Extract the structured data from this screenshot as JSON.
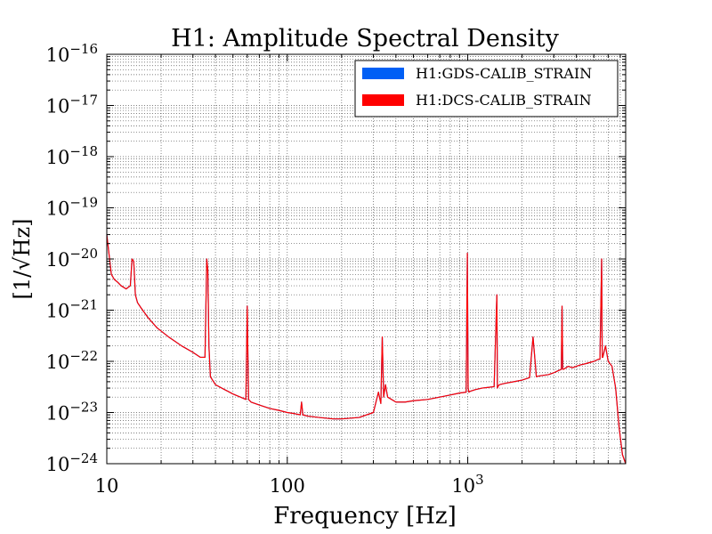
{
  "chart_data": {
    "type": "line",
    "title": "H1: Amplitude Spectral Density",
    "xlabel": "Frequency [Hz]",
    "ylabel": "[1/√Hz]",
    "x_scale": "log",
    "y_scale": "log",
    "xlim": [
      10,
      7500
    ],
    "ylim": [
      1e-24,
      1e-16
    ],
    "grid": true,
    "legend_position": "top-right",
    "x_ticks": [
      {
        "value": 10,
        "label": "10"
      },
      {
        "value": 100,
        "label": "100"
      },
      {
        "value": 1000,
        "label": "10",
        "exponent": "3"
      }
    ],
    "y_ticks": [
      {
        "value": 1e-16,
        "label": "10",
        "exponent": "−16"
      },
      {
        "value": 1e-17,
        "label": "10",
        "exponent": "−17"
      },
      {
        "value": 1e-18,
        "label": "10",
        "exponent": "−18"
      },
      {
        "value": 1e-19,
        "label": "10",
        "exponent": "−19"
      },
      {
        "value": 1e-20,
        "label": "10",
        "exponent": "−20"
      },
      {
        "value": 1e-21,
        "label": "10",
        "exponent": "−21"
      },
      {
        "value": 1e-22,
        "label": "10",
        "exponent": "−22"
      },
      {
        "value": 1e-23,
        "label": "10",
        "exponent": "−23"
      },
      {
        "value": 1e-24,
        "label": "10",
        "exponent": "−24"
      }
    ],
    "series": [
      {
        "name": "H1:GDS-CALIB_STRAIN",
        "color": "#005ff5",
        "x": [
          10,
          10.3,
          10.6,
          11,
          11.5,
          12,
          12.8,
          13.5,
          13.8,
          14.1,
          14.4,
          14.8,
          15.5,
          17,
          19,
          22,
          26,
          30,
          33,
          35,
          35.8,
          36.3,
          36.8,
          37.5,
          40,
          45,
          50,
          55,
          59,
          60,
          61,
          63,
          70,
          80,
          90,
          100,
          110,
          118,
          120,
          122,
          130,
          150,
          180,
          200,
          250,
          300,
          320,
          330,
          336,
          342,
          350,
          360,
          400,
          450,
          500,
          600,
          700,
          800,
          900,
          980,
          995,
          1005,
          1015,
          1030,
          1100,
          1200,
          1300,
          1400,
          1450,
          1460,
          1475,
          1500,
          1600,
          1800,
          2000,
          2200,
          2300,
          2400,
          2500,
          2800,
          3000,
          3300,
          3331,
          3360,
          3400,
          3600,
          3800,
          4000,
          4200,
          4500,
          5000,
          5300,
          5400,
          5520,
          5560,
          5600,
          5800,
          6000,
          6300,
          6600,
          6900,
          7200,
          7500
        ],
        "y": [
          3e-20,
          1.2e-20,
          5e-21,
          4e-21,
          3.5e-21,
          3e-21,
          2.6e-21,
          3e-21,
          1e-20,
          9e-21,
          2e-21,
          1.4e-21,
          1.1e-21,
          7e-22,
          4.5e-22,
          3e-22,
          2e-22,
          1.5e-22,
          1.2e-22,
          1.2e-22,
          1e-20,
          6e-21,
          2e-22,
          5e-23,
          3.5e-23,
          2.8e-23,
          2.3e-23,
          2e-23,
          1.8e-23,
          1.2e-21,
          1.8e-23,
          1.6e-23,
          1.4e-23,
          1.2e-23,
          1.1e-23,
          1e-23,
          9.5e-24,
          9e-24,
          1.6e-23,
          9e-24,
          8.5e-24,
          8e-24,
          7.5e-24,
          7.5e-24,
          8e-24,
          1e-23,
          2.5e-23,
          1.5e-23,
          3e-22,
          2e-23,
          3.5e-23,
          2e-23,
          1.6e-23,
          1.6e-23,
          1.7e-23,
          1.8e-23,
          2e-23,
          2.2e-23,
          2.4e-23,
          2.5e-23,
          1.3e-20,
          3e-23,
          2.5e-23,
          2.6e-23,
          2.8e-23,
          3e-23,
          3.1e-23,
          3.2e-23,
          2e-21,
          3e-23,
          3.3e-23,
          3.5e-23,
          3.7e-23,
          4e-23,
          4.3e-23,
          4.8e-23,
          3e-22,
          5e-23,
          5.2e-23,
          5.5e-23,
          6e-23,
          7e-23,
          1.2e-21,
          7e-23,
          7e-23,
          8e-23,
          7.5e-23,
          8e-23,
          8.5e-23,
          9e-23,
          1e-22,
          1.1e-22,
          1.1e-22,
          1e-20,
          1.2e-22,
          1.2e-22,
          2e-22,
          1e-22,
          8e-23,
          3e-23,
          5e-24,
          1.5e-24,
          1e-24
        ]
      },
      {
        "name": "H1:DCS-CALIB_STRAIN",
        "color": "#ff0000",
        "x": [
          10,
          10.3,
          10.6,
          11,
          11.5,
          12,
          12.8,
          13.5,
          13.8,
          14.1,
          14.4,
          14.8,
          15.5,
          17,
          19,
          22,
          26,
          30,
          33,
          35,
          35.8,
          36.3,
          36.8,
          37.5,
          40,
          45,
          50,
          55,
          59,
          60,
          61,
          63,
          70,
          80,
          90,
          100,
          110,
          118,
          120,
          122,
          130,
          150,
          180,
          200,
          250,
          300,
          320,
          330,
          336,
          342,
          350,
          360,
          400,
          450,
          500,
          600,
          700,
          800,
          900,
          980,
          995,
          1005,
          1015,
          1030,
          1100,
          1200,
          1300,
          1400,
          1450,
          1460,
          1475,
          1500,
          1600,
          1800,
          2000,
          2200,
          2300,
          2400,
          2500,
          2800,
          3000,
          3300,
          3331,
          3360,
          3400,
          3600,
          3800,
          4000,
          4200,
          4500,
          5000,
          5300,
          5400,
          5520,
          5560,
          5600,
          5800,
          6000,
          6300,
          6600,
          6900,
          7200,
          7500
        ],
        "y": [
          3e-20,
          1.2e-20,
          5e-21,
          4e-21,
          3.5e-21,
          3e-21,
          2.6e-21,
          3e-21,
          1e-20,
          9e-21,
          2e-21,
          1.4e-21,
          1.1e-21,
          7e-22,
          4.5e-22,
          3e-22,
          2e-22,
          1.5e-22,
          1.2e-22,
          1.2e-22,
          1e-20,
          6e-21,
          2e-22,
          5e-23,
          3.5e-23,
          2.8e-23,
          2.3e-23,
          2e-23,
          1.8e-23,
          1.2e-21,
          1.8e-23,
          1.6e-23,
          1.4e-23,
          1.2e-23,
          1.1e-23,
          1e-23,
          9.5e-24,
          9e-24,
          1.6e-23,
          9e-24,
          8.5e-24,
          8e-24,
          7.5e-24,
          7.5e-24,
          8e-24,
          1e-23,
          2.5e-23,
          1.5e-23,
          3e-22,
          2e-23,
          3.5e-23,
          2e-23,
          1.6e-23,
          1.6e-23,
          1.7e-23,
          1.8e-23,
          2e-23,
          2.2e-23,
          2.4e-23,
          2.5e-23,
          1.3e-20,
          3e-23,
          2.5e-23,
          2.6e-23,
          2.8e-23,
          3e-23,
          3.1e-23,
          3.2e-23,
          2e-21,
          3e-23,
          3.3e-23,
          3.5e-23,
          3.7e-23,
          4e-23,
          4.3e-23,
          4.8e-23,
          3e-22,
          5e-23,
          5.2e-23,
          5.5e-23,
          6e-23,
          7e-23,
          1.2e-21,
          7e-23,
          7e-23,
          8e-23,
          7.5e-23,
          8e-23,
          8.5e-23,
          9e-23,
          1e-22,
          1.1e-22,
          1.1e-22,
          1e-20,
          1.2e-22,
          1.2e-22,
          2e-22,
          1e-22,
          8e-23,
          3e-23,
          5e-24,
          1.5e-24,
          1e-24
        ]
      }
    ]
  }
}
